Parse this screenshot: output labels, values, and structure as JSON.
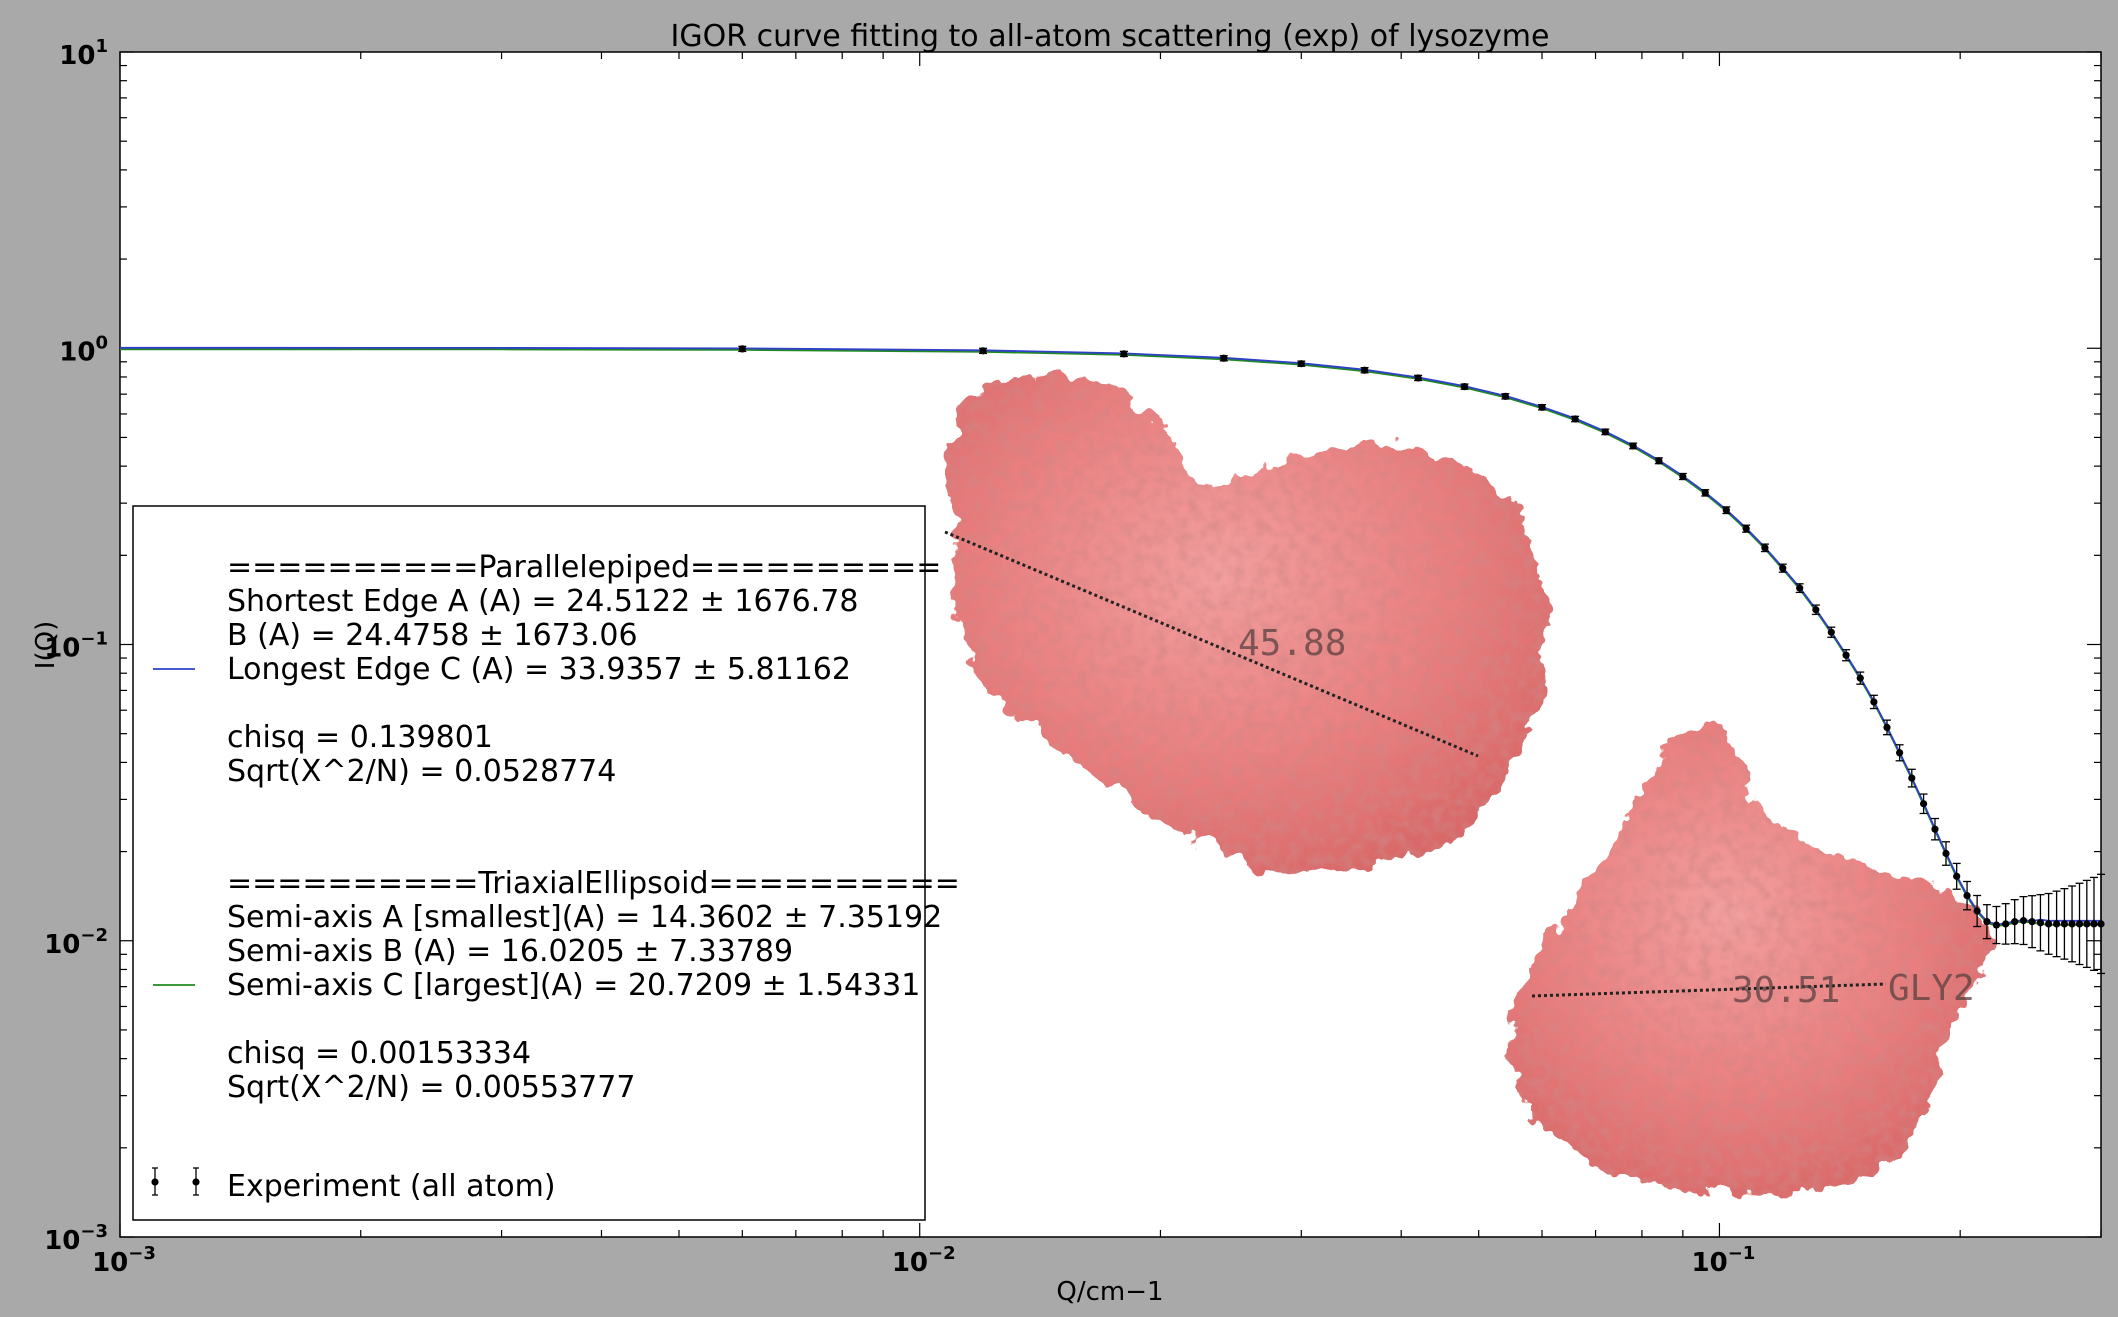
{
  "chart_data": {
    "type": "scatter",
    "title": "IGOR curve fitting to all-atom scattering (exp) of lysozyme",
    "xlabel": "Q/cm−1",
    "ylabel": "I(Q)",
    "xscale": "log",
    "yscale": "log",
    "xlim": [
      0.001,
      0.3
    ],
    "ylim": [
      0.001,
      10
    ],
    "x_ticks": [
      {
        "base": "10",
        "exp": "−3"
      },
      {
        "base": "10",
        "exp": "−2"
      },
      {
        "base": "10",
        "exp": "−1"
      }
    ],
    "y_ticks": [
      {
        "base": "10",
        "exp": "1"
      },
      {
        "base": "10",
        "exp": "0"
      },
      {
        "base": "10",
        "exp": "−1"
      },
      {
        "base": "10",
        "exp": "−2"
      },
      {
        "base": "10",
        "exp": "−3"
      }
    ],
    "grid": false,
    "legend_position": "lower-left",
    "series": [
      {
        "name": "Parallelepiped",
        "kind": "line",
        "color": "#3040c8",
        "legend_lines": [
          "==========Parallelepiped==========",
          "Shortest Edge A (A) =   24.5122 ± 1676.78",
          "B (A) =  24.4758  ± 1673.06",
          "Longest Edge C (A) =   33.9357 ± 5.81162",
          "",
          "chisq = 0.139801",
          "Sqrt(X^2/N) = 0.0528774"
        ]
      },
      {
        "name": "TriaxialEllipsoid",
        "kind": "line",
        "color": "#208a20",
        "legend_lines": [
          "==========TriaxialEllipsoid==========",
          "Semi-axis A [smallest](A) =  14.3602 ± 7.35192",
          "Semi-axis B (A) =   16.0205 ± 7.33789",
          "Semi-axis C [largest](A) =  20.7209 ± 1.54331",
          "",
          "chisq = 0.00153334",
          "Sqrt(X^2/N) = 0.00553777"
        ]
      },
      {
        "name": "Experiment (all atom)",
        "kind": "errorbar",
        "color": "#000000",
        "x": [
          0.006,
          0.012,
          0.018,
          0.024,
          0.03,
          0.036,
          0.042,
          0.048,
          0.054,
          0.06,
          0.066,
          0.072,
          0.078,
          0.084,
          0.09,
          0.096,
          0.102,
          0.108,
          0.114,
          0.12,
          0.126,
          0.132,
          0.138,
          0.144,
          0.15,
          0.156,
          0.162,
          0.168,
          0.174,
          0.18,
          0.186,
          0.192,
          0.198,
          0.204,
          0.21,
          0.216,
          0.222,
          0.228,
          0.234,
          0.24,
          0.246,
          0.252,
          0.258,
          0.264,
          0.27,
          0.276,
          0.282,
          0.288,
          0.294,
          0.3
        ],
        "y": [
          0.995,
          0.98,
          0.957,
          0.925,
          0.887,
          0.843,
          0.794,
          0.742,
          0.688,
          0.632,
          0.577,
          0.522,
          0.468,
          0.417,
          0.369,
          0.325,
          0.284,
          0.246,
          0.212,
          0.181,
          0.155,
          0.131,
          0.11,
          0.092,
          0.077,
          0.064,
          0.0525,
          0.0431,
          0.0354,
          0.029,
          0.0238,
          0.0197,
          0.0165,
          0.0142,
          0.0126,
          0.0116,
          0.0113,
          0.0114,
          0.0116,
          0.0117,
          0.0116,
          0.0115,
          0.0114,
          0.0114,
          0.0114,
          0.0114,
          0.0114,
          0.0114,
          0.0114,
          0.0114
        ]
      }
    ],
    "annotations": [
      "45.88",
      "30.51",
      "GLY2"
    ]
  }
}
